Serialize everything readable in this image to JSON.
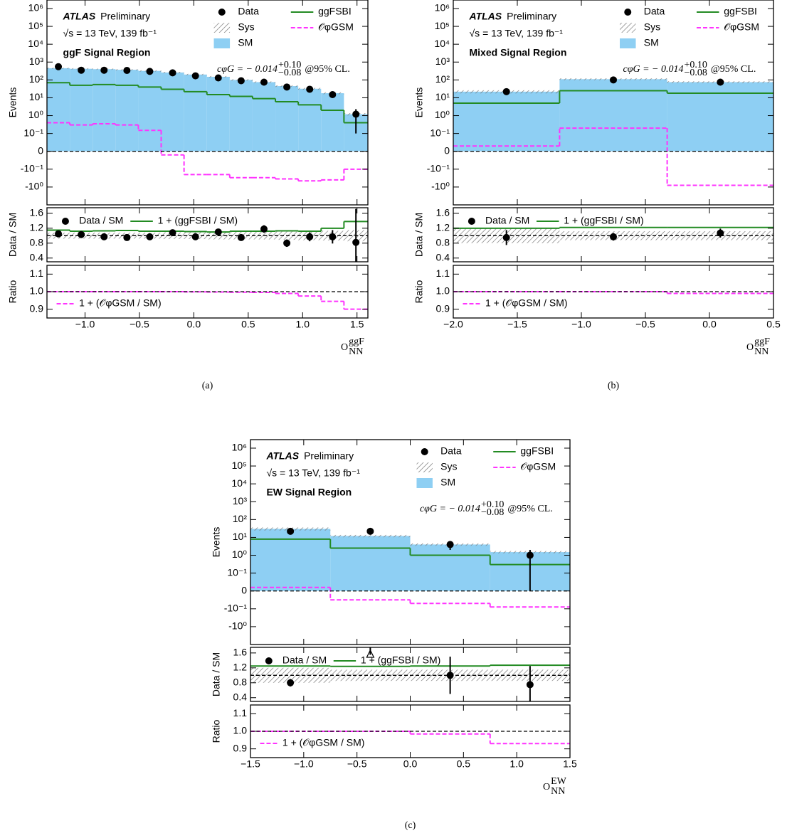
{
  "chart_data": [
    {
      "type": "histogram",
      "caption": "(a)",
      "experiment": "ATLAS",
      "status": "Preliminary",
      "energy": "√s = 13 TeV, 139 fb⁻¹",
      "region": "ggF Signal Region",
      "annotation": {
        "coef": "cφG = − 0.014",
        "up": "+0.10",
        "down": "−0.08",
        "cl": "@95% CL."
      },
      "xlabel": {
        "text": "O",
        "sup": "ggF",
        "sub": "NN"
      },
      "bins": [
        -1.35,
        -1.14,
        -0.93,
        -0.72,
        -0.51,
        -0.3,
        -0.09,
        0.12,
        0.33,
        0.54,
        0.75,
        0.96,
        1.17,
        1.38,
        1.6
      ],
      "xlim": [
        -1.35,
        1.6
      ],
      "xticks": [
        {
          "value": -1,
          "label": "−1.0"
        },
        {
          "value": -0.5,
          "label": "−0.5"
        },
        {
          "value": 0,
          "label": "0.0"
        },
        0.5,
        {
          "value": 1,
          "label": "1.0"
        },
        1.5
      ],
      "panels": {
        "main": {
          "ylabel": "Events",
          "yscale": "symlog",
          "linthresh": 0.1,
          "ylim": [
            -10,
            3000000
          ],
          "reference_line": 0,
          "yticks": [
            {
              "value": 1000000,
              "label": "10⁶"
            },
            {
              "value": 100000,
              "label": "10⁵"
            },
            {
              "value": 10000,
              "label": "10⁴"
            },
            {
              "value": 1000,
              "label": "10³"
            },
            {
              "value": 100,
              "label": "10²"
            },
            {
              "value": 10,
              "label": "10¹"
            },
            {
              "value": 1,
              "label": "10⁰"
            },
            {
              "value": 0.1,
              "label": "10⁻¹"
            },
            0,
            {
              "value": -0.1,
              "label": "-10⁻¹"
            },
            {
              "value": -1,
              "label": "-10⁰"
            }
          ],
          "series": [
            {
              "name": "Data",
              "style": "points",
              "color": "#000000",
              "values": [
                550,
                350,
                350,
                340,
                300,
                250,
                170,
                130,
                90,
                75,
                40,
                30,
                15,
                1.2
              ],
              "errors": [
                25,
                19,
                19,
                18,
                17,
                16,
                13,
                11,
                9,
                9,
                6,
                5,
                4,
                1.1
              ]
            },
            {
              "name": "Sys",
              "style": "hatch",
              "color": "#808080",
              "values": [
                0.08,
                0.08,
                0.08,
                0.08,
                0.08,
                0.09,
                0.09,
                0.1,
                0.1,
                0.1,
                0.11,
                0.12,
                0.13,
                0.15
              ]
            },
            {
              "name": "SM",
              "style": "fill",
              "color": "#8ecff3",
              "values": [
                450,
                420,
                400,
                370,
                320,
                260,
                200,
                150,
                100,
                75,
                45,
                32,
                18,
                1.2
              ]
            },
            {
              "name": "ggFSBI",
              "style": "step",
              "color": "#238b23",
              "values": [
                70,
                50,
                55,
                50,
                40,
                30,
                22,
                15,
                12,
                9,
                6,
                4,
                2,
                0.4
              ]
            },
            {
              "name": "𝒪φGSM",
              "style": "dashed-step",
              "color": "#ff33ff",
              "values": [
                0.4,
                0.3,
                0.35,
                0.3,
                0.15,
                -0.02,
                -0.2,
                -0.2,
                -0.3,
                -0.3,
                -0.35,
                -0.45,
                -0.4,
                -0.1
              ]
            }
          ]
        },
        "ratio": {
          "ylabel": "Data / SM",
          "ylim": [
            0.3,
            1.75
          ],
          "yticks": [
            0.4,
            0.8,
            1.2,
            1.6
          ],
          "reference_line": 1,
          "series": [
            {
              "name": "Data / SM",
              "style": "points",
              "color": "#000000",
              "values": [
                1.05,
                1.03,
                0.97,
                0.95,
                0.97,
                1.08,
                0.97,
                1.1,
                0.95,
                1.18,
                0.8,
                0.97,
                0.97,
                0.82
              ],
              "errors": [
                0.04,
                0.04,
                0.04,
                0.04,
                0.05,
                0.05,
                0.06,
                0.07,
                0.08,
                0.1,
                0.1,
                0.12,
                0.18,
                0.9
              ]
            },
            {
              "name": "1 + (ggFSBI / SM)",
              "style": "step",
              "color": "#238b23",
              "values": [
                1.15,
                1.12,
                1.13,
                1.14,
                1.12,
                1.12,
                1.11,
                1.1,
                1.12,
                1.12,
                1.13,
                1.12,
                1.2,
                1.38
              ]
            }
          ]
        },
        "ratio2": {
          "ylabel": "Ratio",
          "ylim": [
            0.85,
            1.15
          ],
          "yticks": [
            0.9,
            {
              "value": 1,
              "label": "1.0"
            },
            1.1
          ],
          "reference_line": 1,
          "series": [
            {
              "name": "1 + (𝒪φGSM / SM)",
              "style": "dashed-step",
              "color": "#ff33ff",
              "values": [
                1,
                1,
                1,
                1,
                1,
                1,
                0.999,
                0.998,
                0.997,
                0.996,
                0.99,
                0.975,
                0.945,
                0.9
              ]
            }
          ]
        }
      }
    },
    {
      "type": "histogram",
      "caption": "(b)",
      "experiment": "ATLAS",
      "status": "Preliminary",
      "energy": "√s = 13 TeV, 139 fb⁻¹",
      "region": "Mixed Signal Region",
      "annotation": {
        "coef": "cφG = − 0.014",
        "up": "+0.10",
        "down": "−0.08",
        "cl": "@95% CL."
      },
      "xlabel": {
        "text": "O",
        "sup": "ggF",
        "sub": "NN"
      },
      "bins": [
        -2.0,
        -1.17,
        -0.33,
        0.5
      ],
      "xlim": [
        -2.0,
        0.5
      ],
      "xticks": [
        {
          "value": -2,
          "label": "−2.0"
        },
        {
          "value": -1.5,
          "label": "−1.5"
        },
        {
          "value": -1,
          "label": "−1.0"
        },
        {
          "value": -0.5,
          "label": "−0.5"
        },
        {
          "value": 0,
          "label": "0.0"
        },
        0.5
      ],
      "panels": {
        "main": {
          "ylabel": "Events",
          "yscale": "symlog",
          "linthresh": 0.1,
          "ylim": [
            -10,
            3000000
          ],
          "reference_line": 0,
          "yticks": [
            {
              "value": 1000000,
              "label": "10⁶"
            },
            {
              "value": 100000,
              "label": "10⁵"
            },
            {
              "value": 10000,
              "label": "10⁴"
            },
            {
              "value": 1000,
              "label": "10³"
            },
            {
              "value": 100,
              "label": "10²"
            },
            {
              "value": 10,
              "label": "10¹"
            },
            {
              "value": 1,
              "label": "10⁰"
            },
            {
              "value": 0.1,
              "label": "10⁻¹"
            },
            0,
            {
              "value": -0.1,
              "label": "-10⁻¹"
            },
            {
              "value": -1,
              "label": "-10⁰"
            }
          ],
          "series": [
            {
              "name": "Data",
              "style": "points",
              "color": "#000000",
              "values": [
                22,
                100,
                75
              ],
              "errors": [
                5,
                10,
                9
              ]
            },
            {
              "name": "Sys",
              "style": "hatch",
              "color": "#808080",
              "values": [
                0.2,
                0.12,
                0.12
              ]
            },
            {
              "name": "SM",
              "style": "fill",
              "color": "#8ecff3",
              "values": [
                22,
                110,
                75
              ]
            },
            {
              "name": "ggFSBI",
              "style": "step",
              "color": "#238b23",
              "values": [
                5,
                25,
                18
              ]
            },
            {
              "name": "𝒪φGSM",
              "style": "dashed-step",
              "color": "#ff33ff",
              "values": [
                0.03,
                0.2,
                -0.8
              ]
            }
          ]
        },
        "ratio": {
          "ylabel": "Data / SM",
          "ylim": [
            0.3,
            1.75
          ],
          "yticks": [
            0.4,
            0.8,
            1.2,
            1.6
          ],
          "reference_line": 1,
          "series": [
            {
              "name": "Data / SM",
              "style": "points",
              "color": "#000000",
              "values": [
                0.95,
                0.97,
                1.07
              ],
              "errors": [
                0.2,
                0.1,
                0.12
              ]
            },
            {
              "name": "1 + (ggFSBI / SM)",
              "style": "step",
              "color": "#238b23",
              "values": [
                1.2,
                1.22,
                1.22
              ]
            }
          ]
        },
        "ratio2": {
          "ylabel": "Ratio",
          "ylim": [
            0.85,
            1.15
          ],
          "yticks": [
            0.9,
            {
              "value": 1,
              "label": "1.0"
            },
            1.1
          ],
          "reference_line": 1,
          "series": [
            {
              "name": "1 + (𝒪φGSM / SM)",
              "style": "dashed-step",
              "color": "#ff33ff",
              "values": [
                1,
                1,
                0.99
              ]
            }
          ]
        }
      }
    },
    {
      "type": "histogram",
      "caption": "(c)",
      "experiment": "ATLAS",
      "status": "Preliminary",
      "energy": "√s = 13 TeV, 139 fb⁻¹",
      "region": "EW Signal Region",
      "annotation": {
        "coef": "cφG = − 0.014",
        "up": "+0.10",
        "down": "−0.08",
        "cl": "@95% CL."
      },
      "xlabel": {
        "text": "O",
        "sup": "EW",
        "sub": "NN"
      },
      "bins": [
        -1.5,
        -0.75,
        0,
        0.75,
        1.5
      ],
      "xlim": [
        -1.5,
        1.5
      ],
      "xticks": [
        {
          "value": -1.5,
          "label": "−1.5"
        },
        {
          "value": -1,
          "label": "−1.0"
        },
        {
          "value": -0.5,
          "label": "−0.5"
        },
        {
          "value": 0,
          "label": "0.0"
        },
        0.5,
        {
          "value": 1,
          "label": "1.0"
        },
        1.5
      ],
      "panels": {
        "main": {
          "ylabel": "Events",
          "yscale": "symlog",
          "linthresh": 0.1,
          "ylim": [
            -10,
            3000000
          ],
          "reference_line": 0,
          "yticks": [
            {
              "value": 1000000,
              "label": "10⁶"
            },
            {
              "value": 100000,
              "label": "10⁵"
            },
            {
              "value": 10000,
              "label": "10⁴"
            },
            {
              "value": 1000,
              "label": "10³"
            },
            {
              "value": 100,
              "label": "10²"
            },
            {
              "value": 10,
              "label": "10¹"
            },
            {
              "value": 1,
              "label": "10⁰"
            },
            {
              "value": 0.1,
              "label": "10⁻¹"
            },
            0,
            {
              "value": -0.1,
              "label": "-10⁻¹"
            },
            {
              "value": -1,
              "label": "-10⁰"
            }
          ],
          "series": [
            {
              "name": "Data",
              "style": "points",
              "color": "#000000",
              "values": [
                22,
                22,
                4,
                1
              ],
              "errors": [
                5,
                5,
                2,
                1
              ]
            },
            {
              "name": "Sys",
              "style": "hatch",
              "color": "#808080",
              "values": [
                0.2,
                0.15,
                0.15,
                0.15
              ]
            },
            {
              "name": "SM",
              "style": "fill",
              "color": "#8ecff3",
              "values": [
                30,
                12,
                4,
                1.5
              ]
            },
            {
              "name": "ggFSBI",
              "style": "step",
              "color": "#238b23",
              "values": [
                8,
                2.5,
                1,
                0.3
              ]
            },
            {
              "name": "𝒪φGSM",
              "style": "dashed-step",
              "color": "#ff33ff",
              "values": [
                0.02,
                -0.05,
                -0.07,
                -0.09
              ]
            }
          ]
        },
        "ratio": {
          "ylabel": "Data / SM",
          "ylim": [
            0.3,
            1.75
          ],
          "yticks": [
            0.4,
            0.8,
            1.2,
            1.6
          ],
          "reference_line": 1,
          "series": [
            {
              "name": "Data / SM",
              "style": "points",
              "color": "#000000",
              "values": [
                0.8,
                1.8,
                1.0,
                0.75
              ],
              "errors": [
                0.1,
                0.25,
                0.5,
                0.5
              ]
            },
            {
              "name": "1 + (ggFSBI / SM)",
              "style": "step",
              "color": "#238b23",
              "values": [
                1.25,
                1.24,
                1.25,
                1.27
              ]
            }
          ]
        },
        "ratio2": {
          "ylabel": "Ratio",
          "ylim": [
            0.85,
            1.15
          ],
          "yticks": [
            0.9,
            {
              "value": 1,
              "label": "1.0"
            },
            1.1
          ],
          "reference_line": 1,
          "series": [
            {
              "name": "1 + (𝒪φGSM / SM)",
              "style": "dashed-step",
              "color": "#ff33ff",
              "values": [
                1,
                1,
                0.985,
                0.93
              ]
            }
          ]
        }
      }
    }
  ]
}
